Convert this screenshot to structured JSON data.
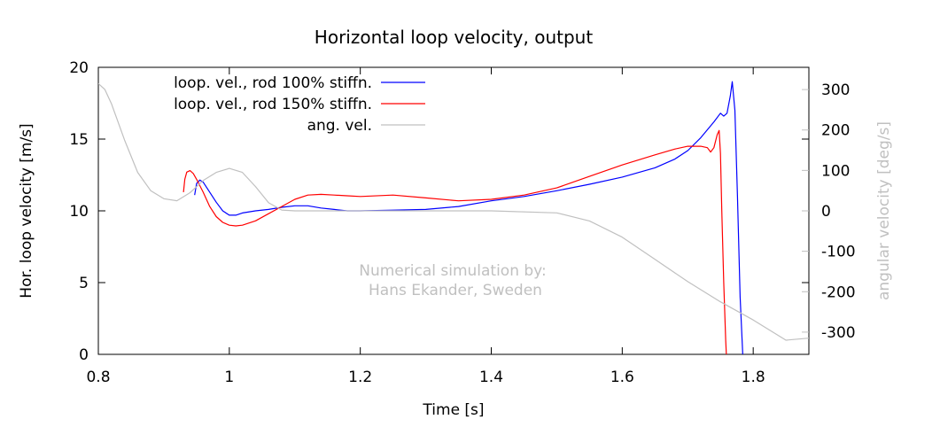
{
  "chart_data": {
    "type": "line",
    "title": "Horizontal loop velocity, output",
    "xlabel": "Time [s]",
    "ylabel": "Hor. loop velocity [m/s]",
    "y2label": "angular velocity [deg/s]",
    "xlim": [
      0.8,
      1.885
    ],
    "ylim": [
      0,
      20
    ],
    "y2lim": [
      -355,
      355
    ],
    "xticks": [
      0.8,
      1,
      1.2,
      1.4,
      1.6,
      1.8
    ],
    "yticks": [
      0,
      5,
      10,
      15,
      20
    ],
    "y2ticks": [
      -300,
      -200,
      -100,
      0,
      100,
      200,
      300
    ],
    "grid": false,
    "legend_position": "top-left",
    "annotation": [
      "Numerical simulation by:",
      "Hans Ekander, Sweden"
    ],
    "colors": {
      "axis": "#000000",
      "annotation": "#c0c0c0",
      "y2axis": "#c0c0c0"
    },
    "series": [
      {
        "name": "loop. vel., rod 100% stiffn.",
        "color": "#0000ff",
        "axis": "y",
        "x": [
          0.947,
          0.95,
          0.955,
          0.96,
          0.97,
          0.98,
          0.99,
          1.0,
          1.01,
          1.02,
          1.04,
          1.06,
          1.08,
          1.1,
          1.12,
          1.14,
          1.16,
          1.18,
          1.2,
          1.25,
          1.3,
          1.35,
          1.4,
          1.45,
          1.5,
          1.55,
          1.6,
          1.65,
          1.68,
          1.7,
          1.72,
          1.74,
          1.75,
          1.755,
          1.76,
          1.765,
          1.768,
          1.772,
          1.776,
          1.78,
          1.785,
          1.79
        ],
        "y": [
          11.1,
          11.9,
          12.15,
          12.0,
          11.3,
          10.6,
          10.0,
          9.7,
          9.7,
          9.85,
          10.0,
          10.1,
          10.25,
          10.35,
          10.35,
          10.2,
          10.1,
          10.0,
          10.0,
          10.05,
          10.1,
          10.3,
          10.7,
          11.0,
          11.4,
          11.85,
          12.35,
          13.0,
          13.6,
          14.2,
          15.1,
          16.2,
          16.8,
          16.6,
          16.8,
          18.0,
          19.0,
          17.0,
          11.0,
          4.0,
          -1.0,
          -5.0
        ]
      },
      {
        "name": "loop. vel., rod 150% stiffn.",
        "color": "#ff0000",
        "axis": "y",
        "x": [
          0.93,
          0.932,
          0.935,
          0.94,
          0.945,
          0.95,
          0.96,
          0.97,
          0.98,
          0.99,
          1.0,
          1.01,
          1.02,
          1.04,
          1.06,
          1.08,
          1.1,
          1.12,
          1.14,
          1.16,
          1.18,
          1.2,
          1.25,
          1.3,
          1.35,
          1.4,
          1.45,
          1.5,
          1.55,
          1.6,
          1.65,
          1.68,
          1.7,
          1.72,
          1.73,
          1.735,
          1.74,
          1.745,
          1.748,
          1.75,
          1.752,
          1.755,
          1.758,
          1.762
        ],
        "y": [
          11.3,
          12.2,
          12.7,
          12.8,
          12.6,
          12.2,
          11.3,
          10.3,
          9.6,
          9.2,
          9.0,
          8.95,
          9.0,
          9.3,
          9.8,
          10.3,
          10.8,
          11.1,
          11.15,
          11.1,
          11.05,
          11.0,
          11.1,
          10.9,
          10.7,
          10.8,
          11.1,
          11.6,
          12.4,
          13.2,
          13.9,
          14.3,
          14.5,
          14.5,
          14.4,
          14.1,
          14.4,
          15.3,
          15.6,
          14.0,
          10.0,
          5.0,
          1.0,
          -3.0
        ]
      },
      {
        "name": "ang. vel.",
        "color": "#c0c0c0",
        "axis": "y2",
        "x": [
          0.8,
          0.81,
          0.82,
          0.84,
          0.86,
          0.88,
          0.9,
          0.92,
          0.94,
          0.96,
          0.98,
          1.0,
          1.02,
          1.04,
          1.06,
          1.08,
          1.1,
          1.15,
          1.2,
          1.3,
          1.4,
          1.5,
          1.55,
          1.6,
          1.65,
          1.7,
          1.75,
          1.8,
          1.85,
          1.885
        ],
        "y": [
          315,
          300,
          265,
          175,
          95,
          50,
          30,
          25,
          45,
          75,
          95,
          105,
          95,
          60,
          20,
          2,
          0,
          0,
          0,
          0,
          0,
          -5,
          -25,
          -65,
          -120,
          -175,
          -225,
          -270,
          -320,
          -315
        ]
      }
    ]
  }
}
